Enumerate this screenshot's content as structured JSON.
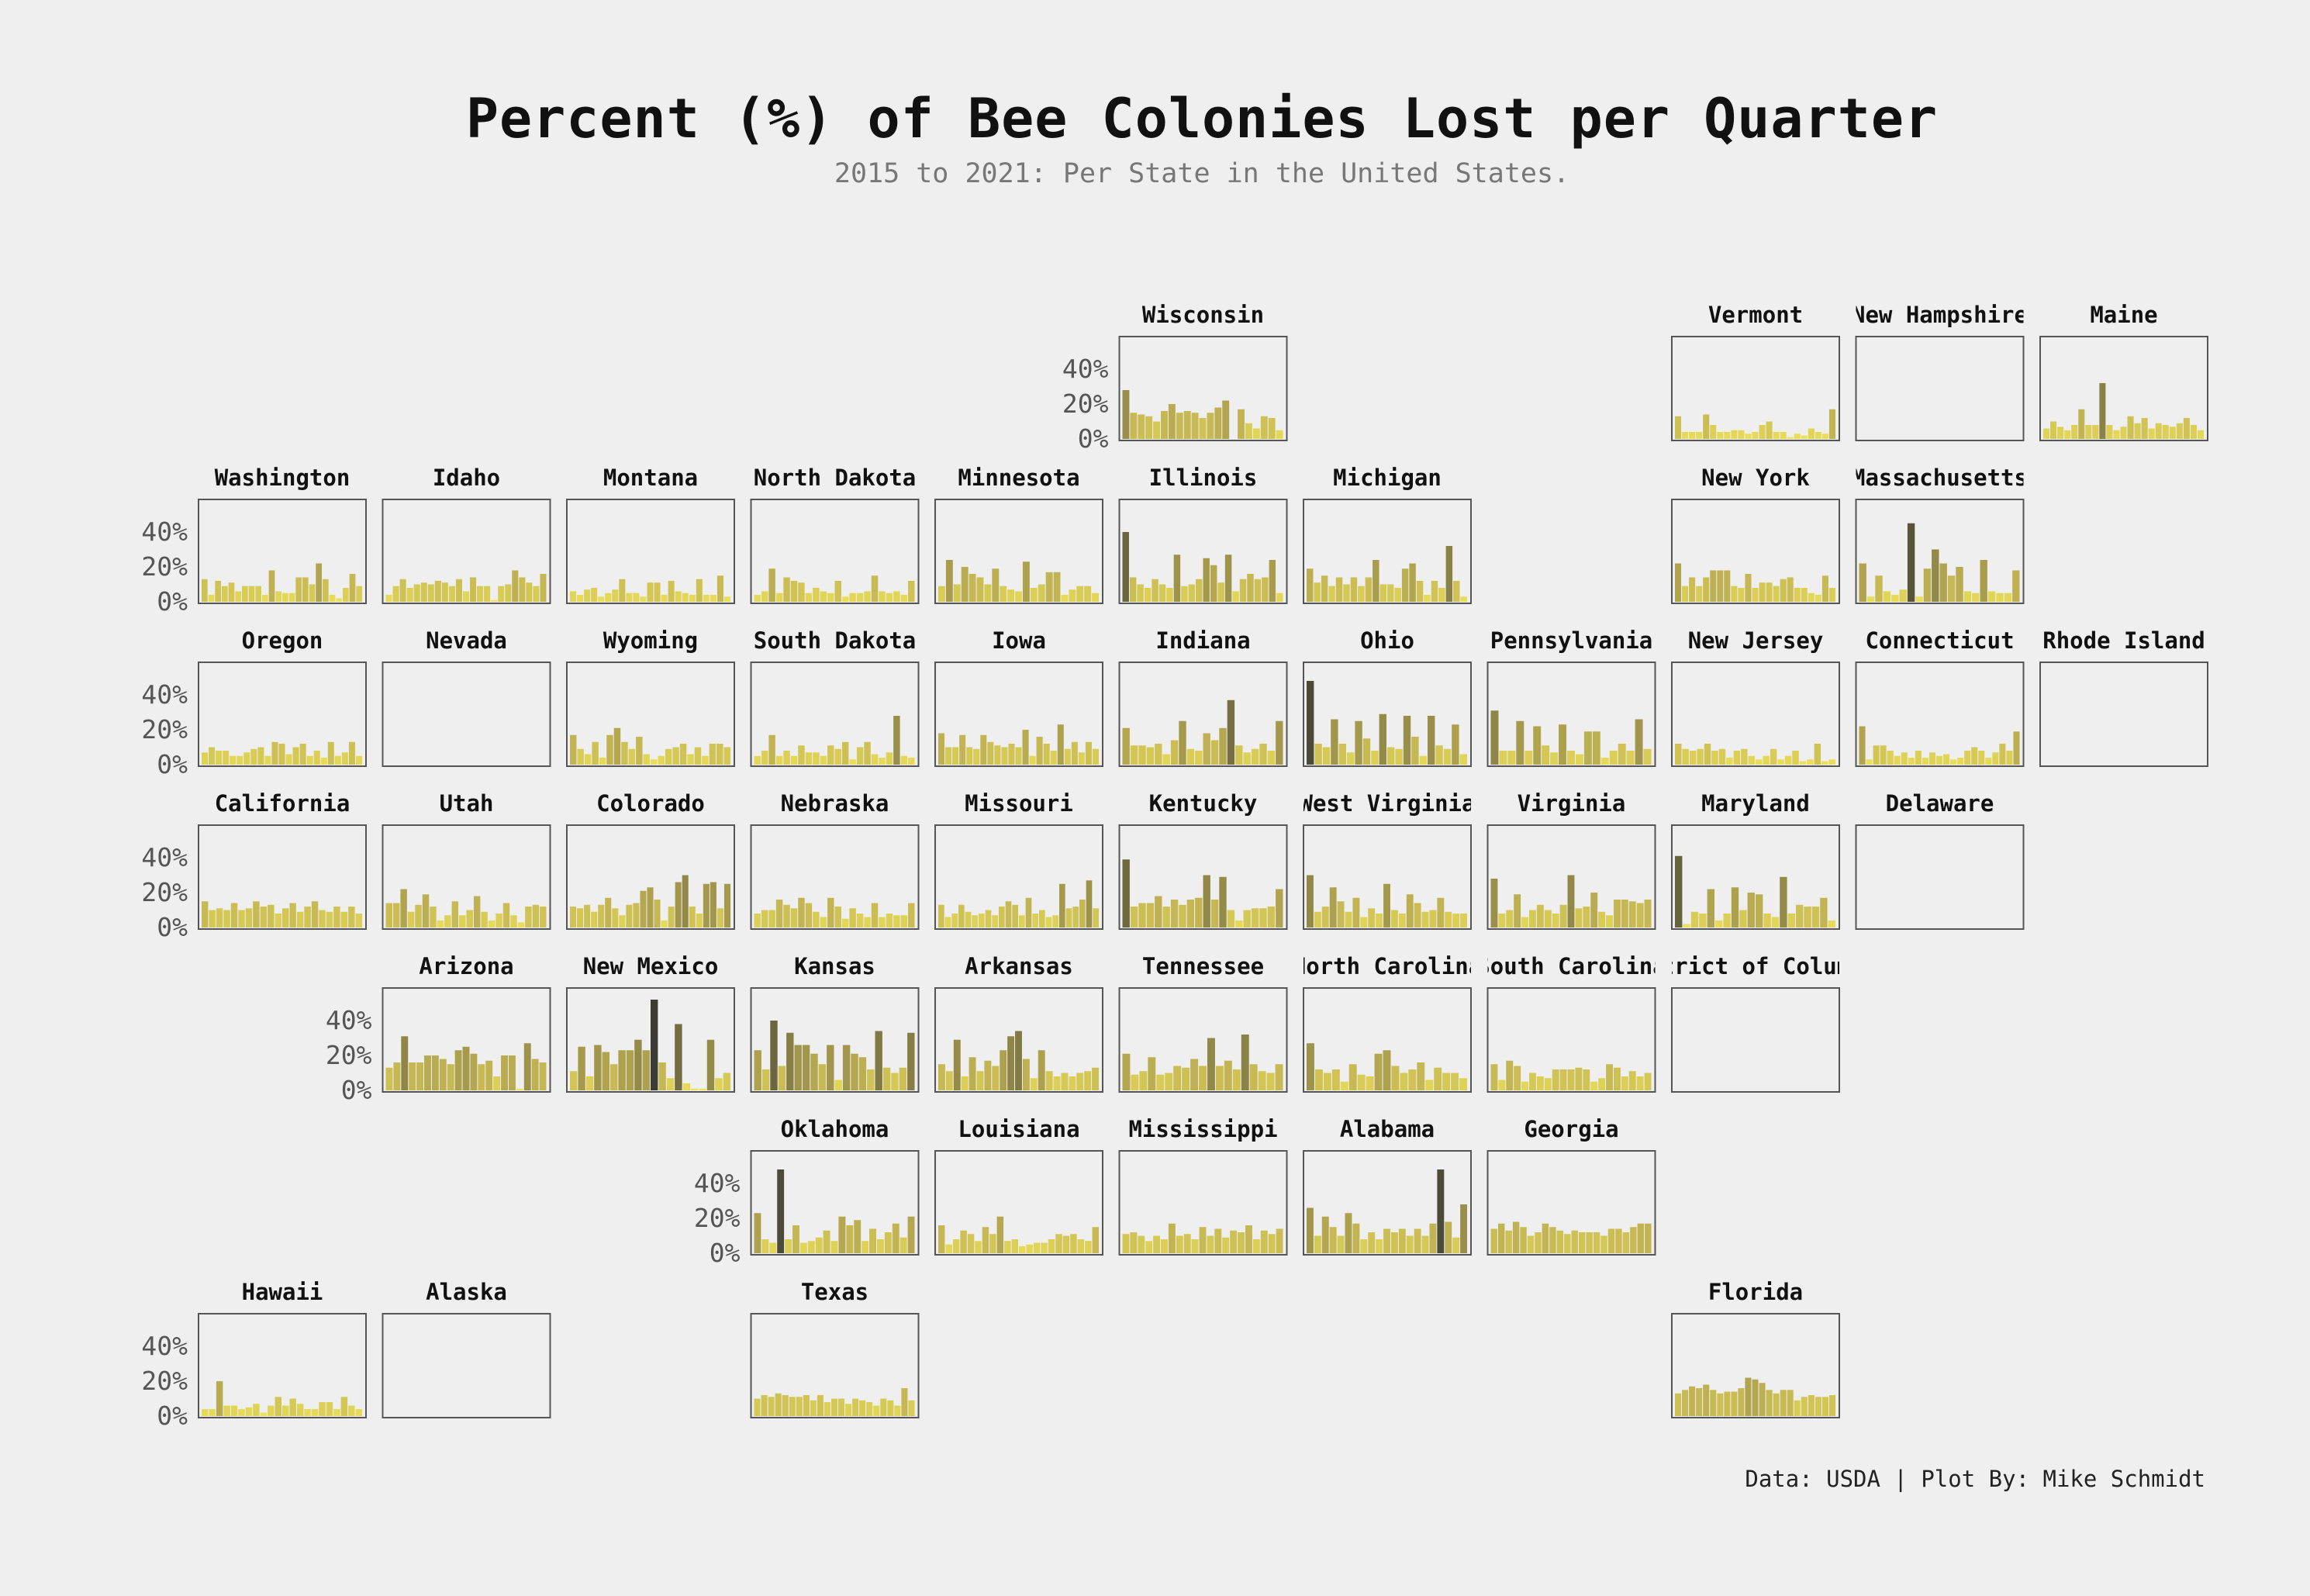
{
  "title": "Percent (%) of Bee Colonies Lost per Quarter",
  "subtitle": "2015 to 2021: Per State in the United States.",
  "caption": "Data: USDA | Plot By: Mike Schmidt",
  "chart_data": {
    "type": "bar",
    "layout": "small-multiples tile grid map",
    "ylim": [
      0,
      55
    ],
    "y_ticks": [
      "0%",
      "20%",
      "40%"
    ],
    "color_scale": {
      "low": "#f2e44a",
      "mid": "#b5a640",
      "high": "#1c1c1c"
    },
    "states": [
      {
        "name": "Wisconsin",
        "row": 0,
        "col": 5,
        "values": [
          28,
          15,
          14,
          13,
          10,
          16,
          20,
          15,
          16,
          15,
          12,
          15,
          18,
          22,
          0,
          17,
          9,
          6,
          13,
          12,
          5
        ]
      },
      {
        "name": "Vermont",
        "row": 0,
        "col": 8,
        "values": [
          13,
          4,
          4,
          4,
          14,
          8,
          4,
          4,
          5,
          5,
          3,
          4,
          8,
          10,
          4,
          4,
          1,
          3,
          2,
          6,
          4,
          3,
          17
        ]
      },
      {
        "name": "New Hampshire",
        "row": 0,
        "col": 9,
        "values": []
      },
      {
        "name": "Maine",
        "row": 0,
        "col": 10,
        "values": [
          6,
          10,
          7,
          5,
          8,
          17,
          8,
          8,
          32,
          8,
          5,
          7,
          13,
          9,
          12,
          6,
          9,
          8,
          7,
          9,
          12,
          8,
          5
        ]
      },
      {
        "name": "Washington",
        "row": 1,
        "col": 0,
        "values": [
          13,
          4,
          12,
          9,
          11,
          6,
          9,
          9,
          9,
          4,
          18,
          6,
          5,
          5,
          14,
          14,
          10,
          22,
          13,
          4,
          2,
          8,
          16,
          9
        ]
      },
      {
        "name": "Idaho",
        "row": 1,
        "col": 1,
        "values": [
          4,
          9,
          13,
          8,
          10,
          11,
          10,
          12,
          11,
          9,
          13,
          6,
          14,
          9,
          9,
          1,
          9,
          10,
          18,
          14,
          11,
          9,
          16
        ]
      },
      {
        "name": "Montana",
        "row": 1,
        "col": 2,
        "values": [
          6,
          4,
          7,
          8,
          3,
          5,
          7,
          13,
          5,
          5,
          3,
          11,
          11,
          4,
          12,
          6,
          5,
          4,
          13,
          4,
          4,
          15,
          3
        ]
      },
      {
        "name": "North Dakota",
        "row": 1,
        "col": 3,
        "values": [
          4,
          6,
          19,
          5,
          14,
          12,
          11,
          5,
          8,
          6,
          5,
          12,
          3,
          5,
          5,
          6,
          15,
          6,
          5,
          6,
          4,
          12
        ]
      },
      {
        "name": "Minnesota",
        "row": 1,
        "col": 4,
        "values": [
          9,
          24,
          10,
          20,
          16,
          14,
          10,
          19,
          9,
          7,
          6,
          23,
          8,
          10,
          17,
          17,
          4,
          7,
          9,
          9,
          5
        ]
      },
      {
        "name": "Illinois",
        "row": 1,
        "col": 5,
        "values": [
          40,
          14,
          10,
          8,
          13,
          10,
          8,
          27,
          9,
          10,
          13,
          25,
          21,
          11,
          27,
          6,
          13,
          16,
          13,
          14,
          24,
          5
        ]
      },
      {
        "name": "Michigan",
        "row": 1,
        "col": 6,
        "values": [
          19,
          11,
          15,
          9,
          14,
          10,
          14,
          9,
          14,
          24,
          10,
          10,
          8,
          19,
          22,
          12,
          4,
          12,
          8,
          32,
          12,
          3
        ]
      },
      {
        "name": "New York",
        "row": 1,
        "col": 8,
        "values": [
          22,
          9,
          14,
          9,
          14,
          18,
          18,
          18,
          9,
          8,
          16,
          8,
          11,
          11,
          9,
          13,
          14,
          8,
          8,
          5,
          4,
          15,
          8
        ]
      },
      {
        "name": "Massachusetts",
        "row": 1,
        "col": 9,
        "values": [
          22,
          3,
          15,
          6,
          4,
          7,
          45,
          3,
          19,
          30,
          22,
          15,
          20,
          6,
          5,
          24,
          6,
          5,
          5,
          18
        ]
      },
      {
        "name": "Oregon",
        "row": 2,
        "col": 0,
        "values": [
          7,
          10,
          8,
          8,
          5,
          5,
          7,
          9,
          10,
          5,
          13,
          12,
          6,
          10,
          12,
          5,
          8,
          4,
          13,
          5,
          7,
          13,
          5
        ]
      },
      {
        "name": "Nevada",
        "row": 2,
        "col": 1,
        "values": []
      },
      {
        "name": "Wyoming",
        "row": 2,
        "col": 2,
        "values": [
          17,
          9,
          6,
          13,
          4,
          17,
          21,
          13,
          9,
          16,
          6,
          3,
          5,
          9,
          10,
          12,
          6,
          10,
          5,
          12,
          12,
          10
        ]
      },
      {
        "name": "South Dakota",
        "row": 2,
        "col": 3,
        "values": [
          5,
          8,
          17,
          5,
          8,
          5,
          11,
          7,
          7,
          5,
          11,
          9,
          13,
          3,
          10,
          13,
          6,
          4,
          7,
          28,
          5,
          4
        ]
      },
      {
        "name": "Iowa",
        "row": 2,
        "col": 4,
        "values": [
          18,
          10,
          10,
          17,
          10,
          9,
          17,
          13,
          11,
          10,
          12,
          10,
          20,
          5,
          16,
          12,
          8,
          23,
          9,
          13,
          7,
          13,
          9
        ]
      },
      {
        "name": "Indiana",
        "row": 2,
        "col": 5,
        "values": [
          21,
          11,
          11,
          10,
          12,
          6,
          14,
          25,
          9,
          8,
          18,
          14,
          21,
          37,
          11,
          7,
          9,
          12,
          8,
          25
        ]
      },
      {
        "name": "Ohio",
        "row": 2,
        "col": 6,
        "values": [
          48,
          12,
          10,
          26,
          12,
          7,
          25,
          15,
          8,
          29,
          10,
          9,
          28,
          16,
          5,
          28,
          11,
          9,
          23,
          6
        ]
      },
      {
        "name": "Pennsylvania",
        "row": 2,
        "col": 7,
        "values": [
          31,
          8,
          8,
          25,
          8,
          22,
          11,
          7,
          23,
          8,
          6,
          19,
          19,
          4,
          8,
          12,
          8,
          26,
          9
        ]
      },
      {
        "name": "New Jersey",
        "row": 2,
        "col": 8,
        "values": [
          12,
          9,
          8,
          9,
          12,
          8,
          9,
          4,
          8,
          9,
          5,
          3,
          5,
          9,
          3,
          5,
          8,
          2,
          3,
          12,
          2,
          3
        ]
      },
      {
        "name": "Connecticut",
        "row": 2,
        "col": 9,
        "values": [
          22,
          3,
          11,
          11,
          8,
          5,
          7,
          4,
          8,
          4,
          7,
          5,
          6,
          3,
          4,
          8,
          10,
          8,
          4,
          7,
          12,
          8,
          19
        ]
      },
      {
        "name": "Rhode Island",
        "row": 2,
        "col": 10,
        "values": []
      },
      {
        "name": "California",
        "row": 3,
        "col": 0,
        "values": [
          15,
          10,
          11,
          10,
          14,
          10,
          11,
          15,
          12,
          13,
          8,
          11,
          14,
          9,
          12,
          15,
          10,
          9,
          12,
          9,
          12,
          8
        ]
      },
      {
        "name": "Utah",
        "row": 3,
        "col": 1,
        "values": [
          14,
          14,
          22,
          9,
          13,
          19,
          12,
          4,
          7,
          15,
          7,
          10,
          18,
          9,
          4,
          8,
          14,
          7,
          3,
          12,
          13,
          12
        ]
      },
      {
        "name": "Colorado",
        "row": 3,
        "col": 2,
        "values": [
          12,
          11,
          13,
          9,
          13,
          17,
          11,
          7,
          13,
          14,
          21,
          23,
          16,
          4,
          12,
          26,
          30,
          12,
          8,
          25,
          26,
          11,
          25
        ]
      },
      {
        "name": "Nebraska",
        "row": 3,
        "col": 3,
        "values": [
          8,
          10,
          10,
          16,
          13,
          11,
          17,
          14,
          9,
          6,
          17,
          12,
          5,
          11,
          8,
          6,
          14,
          6,
          8,
          7,
          7,
          14
        ]
      },
      {
        "name": "Missouri",
        "row": 3,
        "col": 4,
        "values": [
          13,
          6,
          8,
          13,
          9,
          7,
          8,
          10,
          7,
          12,
          15,
          13,
          7,
          17,
          8,
          10,
          6,
          7,
          25,
          11,
          12,
          16,
          27,
          11
        ]
      },
      {
        "name": "Kentucky",
        "row": 3,
        "col": 5,
        "values": [
          39,
          12,
          14,
          14,
          18,
          12,
          16,
          13,
          16,
          17,
          30,
          16,
          29,
          10,
          4,
          10,
          11,
          11,
          12,
          22
        ]
      },
      {
        "name": "West Virginia",
        "row": 3,
        "col": 6,
        "values": [
          30,
          9,
          12,
          23,
          15,
          9,
          17,
          6,
          11,
          8,
          25,
          10,
          8,
          19,
          14,
          9,
          10,
          17,
          9,
          8,
          8
        ]
      },
      {
        "name": "Virginia",
        "row": 3,
        "col": 7,
        "values": [
          28,
          8,
          10,
          19,
          6,
          10,
          13,
          10,
          8,
          13,
          30,
          11,
          12,
          20,
          9,
          7,
          16,
          16,
          15,
          14,
          16
        ]
      },
      {
        "name": "Maryland",
        "row": 3,
        "col": 8,
        "values": [
          41,
          2,
          9,
          8,
          22,
          4,
          8,
          23,
          10,
          20,
          19,
          8,
          6,
          29,
          8,
          13,
          12,
          12,
          17,
          4
        ]
      },
      {
        "name": "Delaware",
        "row": 3,
        "col": 9,
        "values": []
      },
      {
        "name": "Arizona",
        "row": 4,
        "col": 1,
        "values": [
          13,
          16,
          31,
          16,
          16,
          20,
          20,
          18,
          15,
          23,
          25,
          21,
          15,
          17,
          8,
          20,
          20,
          1,
          27,
          18,
          16
        ]
      },
      {
        "name": "New Mexico",
        "row": 4,
        "col": 2,
        "values": [
          11,
          25,
          8,
          26,
          22,
          15,
          23,
          23,
          29,
          23,
          52,
          16,
          7,
          38,
          4,
          1,
          1,
          29,
          7,
          10
        ]
      },
      {
        "name": "Kansas",
        "row": 4,
        "col": 3,
        "values": [
          23,
          12,
          40,
          14,
          33,
          26,
          26,
          21,
          15,
          26,
          6,
          26,
          21,
          19,
          12,
          34,
          13,
          10,
          13,
          33
        ]
      },
      {
        "name": "Arkansas",
        "row": 4,
        "col": 4,
        "values": [
          15,
          11,
          29,
          8,
          19,
          11,
          17,
          14,
          23,
          31,
          34,
          18,
          7,
          23,
          11,
          8,
          10,
          8,
          10,
          11,
          13
        ]
      },
      {
        "name": "Tennessee",
        "row": 4,
        "col": 5,
        "values": [
          21,
          9,
          11,
          19,
          9,
          10,
          14,
          13,
          18,
          14,
          30,
          14,
          17,
          12,
          32,
          15,
          11,
          10,
          15
        ]
      },
      {
        "name": "North Carolina",
        "row": 4,
        "col": 6,
        "values": [
          27,
          12,
          10,
          12,
          5,
          15,
          9,
          8,
          21,
          23,
          14,
          10,
          12,
          16,
          6,
          13,
          10,
          10,
          7
        ]
      },
      {
        "name": "South Carolina",
        "row": 4,
        "col": 7,
        "values": [
          15,
          6,
          17,
          14,
          5,
          10,
          8,
          7,
          12,
          12,
          12,
          13,
          12,
          5,
          7,
          15,
          13,
          8,
          11,
          8,
          10
        ]
      },
      {
        "name": "District of Columbia",
        "row": 4,
        "col": 8,
        "values": []
      },
      {
        "name": "Oklahoma",
        "row": 5,
        "col": 3,
        "values": [
          23,
          8,
          6,
          48,
          8,
          16,
          6,
          7,
          9,
          13,
          7,
          21,
          16,
          19,
          7,
          14,
          8,
          12,
          17,
          9,
          21
        ]
      },
      {
        "name": "Louisiana",
        "row": 5,
        "col": 4,
        "values": [
          16,
          5,
          8,
          13,
          11,
          7,
          15,
          11,
          21,
          7,
          8,
          4,
          5,
          6,
          6,
          8,
          11,
          10,
          11,
          8,
          7,
          15
        ]
      },
      {
        "name": "Mississippi",
        "row": 5,
        "col": 5,
        "values": [
          11,
          12,
          10,
          7,
          10,
          8,
          17,
          10,
          11,
          8,
          15,
          10,
          14,
          9,
          13,
          12,
          16,
          8,
          13,
          11,
          14
        ]
      },
      {
        "name": "Alabama",
        "row": 5,
        "col": 6,
        "values": [
          26,
          10,
          21,
          15,
          10,
          23,
          17,
          8,
          12,
          8,
          14,
          12,
          14,
          10,
          14,
          10,
          17,
          48,
          18,
          9,
          28
        ]
      },
      {
        "name": "Georgia",
        "row": 5,
        "col": 7,
        "values": [
          14,
          17,
          13,
          18,
          15,
          10,
          12,
          17,
          15,
          13,
          11,
          13,
          12,
          12,
          12,
          10,
          14,
          14,
          12,
          15,
          17,
          17
        ]
      },
      {
        "name": "Hawaii",
        "row": 6,
        "col": 0,
        "values": [
          4,
          4,
          20,
          6,
          6,
          4,
          5,
          7,
          2,
          6,
          11,
          6,
          10,
          7,
          4,
          4,
          8,
          8,
          4,
          11,
          6,
          4
        ]
      },
      {
        "name": "Alaska",
        "row": 6,
        "col": 1,
        "values": []
      },
      {
        "name": "Texas",
        "row": 6,
        "col": 3,
        "values": [
          10,
          12,
          11,
          13,
          12,
          11,
          11,
          12,
          9,
          12,
          8,
          10,
          10,
          7,
          10,
          9,
          8,
          6,
          10,
          9,
          6,
          16,
          9
        ]
      },
      {
        "name": "Florida",
        "row": 6,
        "col": 8,
        "values": [
          13,
          15,
          17,
          16,
          18,
          15,
          13,
          14,
          14,
          16,
          22,
          21,
          19,
          15,
          13,
          15,
          15,
          9,
          11,
          12,
          11,
          11,
          12
        ]
      }
    ]
  }
}
